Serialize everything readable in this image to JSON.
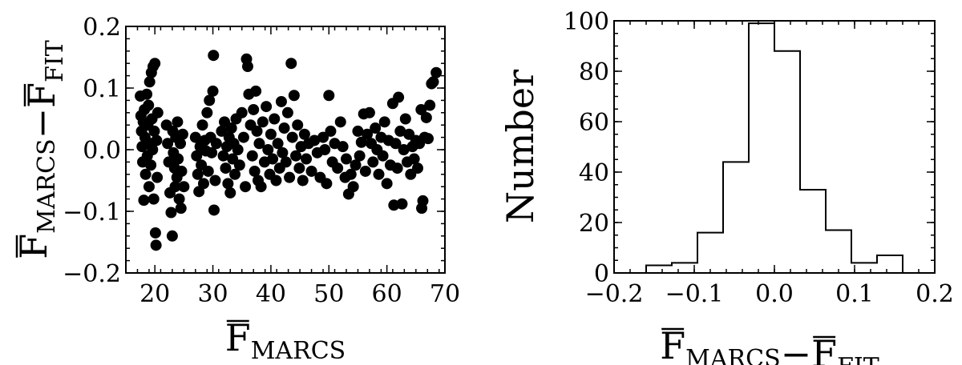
{
  "chart_data": [
    {
      "type": "scatter",
      "title": "",
      "xlabel": {
        "main": "F",
        "sub": "MARCS",
        "overline": true
      },
      "ylabel": {
        "parts": [
          {
            "main": "F",
            "sub": "MARCS",
            "overline": true
          },
          {
            "main": "−"
          },
          {
            "main": "F",
            "sub": "FIT",
            "overline": true
          }
        ]
      },
      "xlim": [
        15,
        70
      ],
      "ylim": [
        -0.2,
        0.2
      ],
      "xticks": [
        20,
        30,
        40,
        50,
        60,
        70
      ],
      "xtick_labels": [
        "20",
        "30",
        "40",
        "50",
        "60",
        "70"
      ],
      "yticks": [
        -0.2,
        -0.1,
        0.0,
        0.1,
        0.2
      ],
      "ytick_labels": [
        "−0.2",
        "−0.1",
        "0.0",
        "0.1",
        "0.2"
      ],
      "grid": false,
      "marker_color": "#000000",
      "points": [
        [
          17.5,
          0.087
        ],
        [
          17.6,
          0.055
        ],
        [
          17.7,
          0.03
        ],
        [
          17.8,
          0.005
        ],
        [
          17.9,
          -0.02
        ],
        [
          18.0,
          0.045
        ],
        [
          18.1,
          -0.082
        ],
        [
          18.2,
          0.065
        ],
        [
          18.3,
          0.02
        ],
        [
          18.4,
          -0.04
        ],
        [
          18.6,
          0.09
        ],
        [
          18.7,
          -0.01
        ],
        [
          18.8,
          0.04
        ],
        [
          18.9,
          0.072
        ],
        [
          19.0,
          -0.06
        ],
        [
          19.1,
          0.11
        ],
        [
          19.2,
          0.01
        ],
        [
          19.3,
          -0.025
        ],
        [
          19.4,
          0.125
        ],
        [
          19.5,
          0.05
        ],
        [
          19.6,
          0.0
        ],
        [
          19.7,
          0.135
        ],
        [
          19.8,
          -0.08
        ],
        [
          19.9,
          0.03
        ],
        [
          20.0,
          0.14
        ],
        [
          20.1,
          -0.135
        ],
        [
          20.2,
          -0.155
        ],
        [
          20.3,
          0.015
        ],
        [
          20.4,
          -0.045
        ],
        [
          20.5,
          0.06
        ],
        [
          22.0,
          0.04
        ],
        [
          22.2,
          0.01
        ],
        [
          22.4,
          -0.02
        ],
        [
          22.6,
          -0.07
        ],
        [
          22.8,
          -0.102
        ],
        [
          23.0,
          -0.14
        ],
        [
          23.1,
          0.03
        ],
        [
          23.2,
          -0.005
        ],
        [
          23.4,
          -0.03
        ],
        [
          23.5,
          -0.06
        ],
        [
          23.6,
          0.02
        ],
        [
          23.8,
          -0.045
        ],
        [
          23.9,
          0.045
        ],
        [
          24.0,
          -0.015
        ],
        [
          24.2,
          -0.08
        ],
        [
          24.4,
          0.01
        ],
        [
          24.5,
          -0.095
        ],
        [
          24.6,
          -0.035
        ],
        [
          24.8,
          0.025
        ],
        [
          25.0,
          -0.06
        ],
        [
          27.0,
          0.02
        ],
        [
          27.2,
          -0.01
        ],
        [
          27.4,
          -0.04
        ],
        [
          27.6,
          -0.068
        ],
        [
          27.8,
          0.005
        ],
        [
          28.0,
          -0.025
        ],
        [
          28.2,
          0.04
        ],
        [
          28.4,
          -0.055
        ],
        [
          28.6,
          0.015
        ],
        [
          28.8,
          -0.002
        ],
        [
          29.0,
          0.06
        ],
        [
          29.2,
          -0.035
        ],
        [
          29.4,
          0.08
        ],
        [
          29.6,
          0.02
        ],
        [
          29.8,
          -0.005
        ],
        [
          30.0,
          0.095
        ],
        [
          30.1,
          0.153
        ],
        [
          30.2,
          -0.098
        ],
        [
          30.4,
          -0.05
        ],
        [
          30.6,
          0.01
        ],
        [
          31.5,
          0.03
        ],
        [
          31.8,
          -0.01
        ],
        [
          32.0,
          0.045
        ],
        [
          32.2,
          -0.03
        ],
        [
          32.4,
          0.005
        ],
        [
          32.6,
          -0.055
        ],
        [
          32.8,
          0.02
        ],
        [
          33.0,
          -0.07
        ],
        [
          33.2,
          0.035
        ],
        [
          33.4,
          -0.015
        ],
        [
          33.6,
          0.01
        ],
        [
          33.8,
          -0.04
        ],
        [
          34.0,
          0.05
        ],
        [
          34.3,
          0.0
        ],
        [
          34.6,
          -0.025
        ],
        [
          35.0,
          0.06
        ],
        [
          35.3,
          0.02
        ],
        [
          35.6,
          -0.06
        ],
        [
          35.8,
          0.147
        ],
        [
          36.0,
          0.135
        ],
        [
          36.2,
          0.09
        ],
        [
          36.5,
          0.04
        ],
        [
          36.8,
          -0.01
        ],
        [
          37.0,
          0.065
        ],
        [
          37.2,
          -0.035
        ],
        [
          37.4,
          0.095
        ],
        [
          37.6,
          0.03
        ],
        [
          37.8,
          -0.05
        ],
        [
          38.0,
          0.01
        ],
        [
          38.3,
          -0.06
        ],
        [
          38.6,
          0.045
        ],
        [
          38.9,
          -0.02
        ],
        [
          39.2,
          0.07
        ],
        [
          39.5,
          0.0
        ],
        [
          39.8,
          -0.04
        ],
        [
          40.0,
          0.025
        ],
        [
          40.3,
          -0.015
        ],
        [
          40.6,
          0.05
        ],
        [
          40.9,
          -0.05
        ],
        [
          41.2,
          0.01
        ],
        [
          41.5,
          -0.03
        ],
        [
          41.8,
          0.078
        ],
        [
          42.0,
          -0.005
        ],
        [
          42.3,
          0.035
        ],
        [
          42.6,
          -0.02
        ],
        [
          42.9,
          0.06
        ],
        [
          43.2,
          -0.045
        ],
        [
          43.5,
          0.14
        ],
        [
          43.7,
          0.02
        ],
        [
          44.0,
          0.088
        ],
        [
          44.3,
          -0.01
        ],
        [
          44.6,
          0.04
        ],
        [
          44.9,
          -0.03
        ],
        [
          45.2,
          0.005
        ],
        [
          45.5,
          -0.05
        ],
        [
          45.8,
          0.025
        ],
        [
          46.1,
          -0.015
        ],
        [
          46.5,
          0.01
        ],
        [
          47.0,
          -0.035
        ],
        [
          47.5,
          0.015
        ],
        [
          48.0,
          -0.005
        ],
        [
          48.5,
          -0.045
        ],
        [
          49.0,
          0.02
        ],
        [
          49.3,
          0.0
        ],
        [
          49.6,
          -0.055
        ],
        [
          50.0,
          0.088
        ],
        [
          50.3,
          0.03
        ],
        [
          50.6,
          -0.02
        ],
        [
          51.0,
          0.01
        ],
        [
          51.5,
          -0.03
        ],
        [
          52.0,
          0.045
        ],
        [
          52.4,
          0.005
        ],
        [
          52.8,
          -0.045
        ],
        [
          53.0,
          -0.015
        ],
        [
          53.4,
          -0.072
        ],
        [
          53.8,
          -0.04
        ],
        [
          54.2,
          -0.06
        ],
        [
          54.6,
          -0.025
        ],
        [
          55.0,
          0.03
        ],
        [
          55.3,
          -0.01
        ],
        [
          55.6,
          0.012
        ],
        [
          56.0,
          0.058
        ],
        [
          56.3,
          -0.035
        ],
        [
          56.6,
          0.025
        ],
        [
          57.0,
          0.06
        ],
        [
          57.3,
          0.01
        ],
        [
          57.6,
          -0.02
        ],
        [
          58.0,
          0.035
        ],
        [
          58.3,
          0.0
        ],
        [
          58.6,
          -0.04
        ],
        [
          59.0,
          0.02
        ],
        [
          59.3,
          -0.01
        ],
        [
          59.6,
          0.045
        ],
        [
          60.0,
          -0.055
        ],
        [
          60.3,
          0.015
        ],
        [
          60.6,
          -0.025
        ],
        [
          61.0,
          0.075
        ],
        [
          61.2,
          -0.09
        ],
        [
          61.5,
          0.01
        ],
        [
          61.8,
          -0.03
        ],
        [
          62.0,
          0.085
        ],
        [
          62.3,
          0.03
        ],
        [
          62.6,
          -0.088
        ],
        [
          62.9,
          0.0
        ],
        [
          63.2,
          0.05
        ],
        [
          63.5,
          -0.02
        ],
        [
          63.8,
          0.025
        ],
        [
          64.1,
          -0.04
        ],
        [
          64.4,
          0.005
        ],
        [
          64.7,
          -0.015
        ],
        [
          65.0,
          0.015
        ],
        [
          65.3,
          -0.03
        ],
        [
          65.6,
          0.01
        ],
        [
          65.9,
          0.065
        ],
        [
          66.0,
          -0.095
        ],
        [
          66.2,
          -0.083
        ],
        [
          66.5,
          0.02
        ],
        [
          66.8,
          0.052
        ],
        [
          67.1,
          0.018
        ],
        [
          67.4,
          0.072
        ],
        [
          67.7,
          0.107
        ],
        [
          68.0,
          0.11
        ],
        [
          68.5,
          0.125
        ]
      ]
    },
    {
      "type": "histogram",
      "title": "",
      "xlabel": {
        "parts": [
          {
            "main": "F",
            "sub": "MARCS",
            "overline": true
          },
          {
            "main": "−"
          },
          {
            "main": "F",
            "sub": "FIT",
            "overline": true
          }
        ]
      },
      "ylabel": "Number",
      "xlim": [
        -0.2,
        0.2
      ],
      "ylim": [
        0,
        100
      ],
      "xticks": [
        -0.2,
        -0.1,
        0.0,
        0.1,
        0.2
      ],
      "xtick_labels": [
        "−0.2",
        "−0.1",
        "0.0",
        "0.1",
        "0.2"
      ],
      "yticks": [
        0,
        20,
        40,
        60,
        80,
        100
      ],
      "ytick_labels": [
        "0",
        "20",
        "40",
        "60",
        "80",
        "100"
      ],
      "grid": false,
      "bin_edges": [
        -0.16,
        -0.128,
        -0.096,
        -0.064,
        -0.032,
        0.0,
        0.032,
        0.064,
        0.096,
        0.128,
        0.16
      ],
      "counts": [
        3,
        4,
        16,
        44,
        99,
        88,
        33,
        17,
        4,
        7
      ]
    }
  ]
}
